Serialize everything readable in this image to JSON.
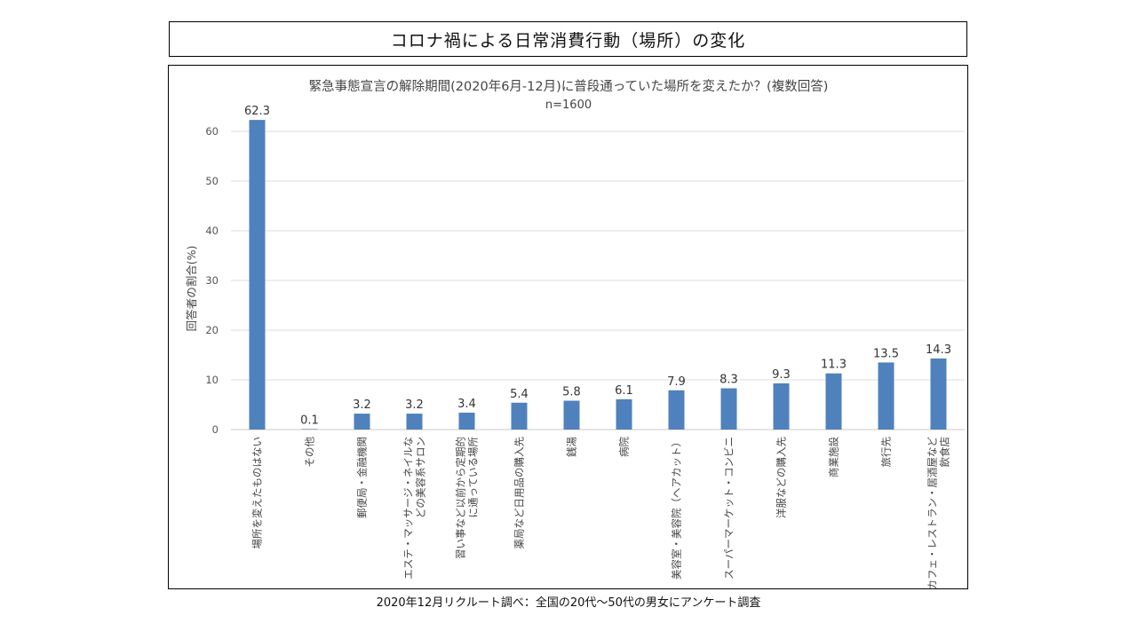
{
  "slide_title": "コロナ禍による日常消費行動（場所）の変化",
  "source_note": "2020年12月リクルート調べ：全国の20代〜50代の男女にアンケート調査",
  "chart_data": {
    "type": "bar",
    "title": "緊急事態宣言の解除期間(2020年6月-12月)に普段通っていた場所を変えたか？(複数回答)",
    "subtitle": "n=1600",
    "xlabel": "",
    "ylabel": "回答者の割合(%)",
    "ylim": [
      0,
      60
    ],
    "yticks": [
      0,
      10,
      20,
      30,
      40,
      50,
      60
    ],
    "grid": true,
    "bar_color": "#4F81BD",
    "categories": [
      [
        "場所を変えたものはない"
      ],
      [
        "その他"
      ],
      [
        "郵便局・金融機関"
      ],
      [
        "エステ・マッサージ・ネイルな",
        "どの美容系サロン"
      ],
      [
        "習い事など以前から定期的",
        "に通っている場所"
      ],
      [
        "薬局など日用品の購入先"
      ],
      [
        "銭湯"
      ],
      [
        "病院"
      ],
      [
        "美容室・美容院（ヘアカット）"
      ],
      [
        "スーパーマーケット・コンビニ"
      ],
      [
        "洋服などの購入先"
      ],
      [
        "商業施設"
      ],
      [
        "旅行先"
      ],
      [
        "カフェ・レストラン・居酒屋など",
        "飲食店"
      ]
    ],
    "values": [
      62.3,
      0.1,
      3.2,
      3.2,
      3.4,
      5.4,
      5.8,
      6.1,
      7.9,
      8.3,
      9.3,
      11.3,
      13.5,
      14.3
    ]
  }
}
